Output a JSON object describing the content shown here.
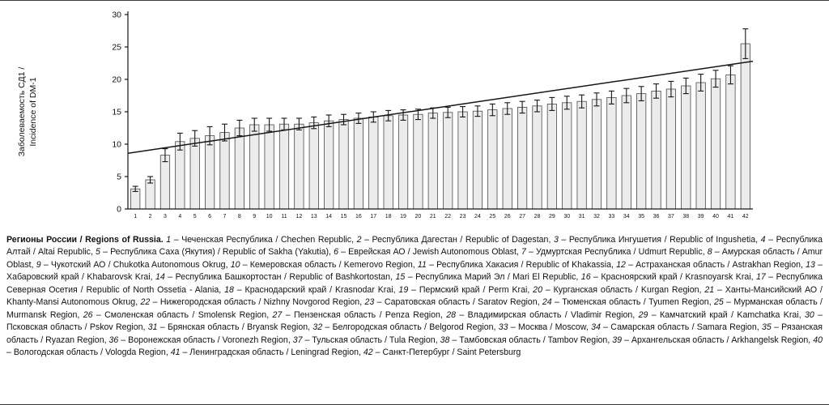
{
  "chart_data": {
    "type": "bar",
    "title": "",
    "xlabel": "",
    "ylabel_line1": "Заболеваемость СД1 /",
    "ylabel_line2": "Incidence of DM-1",
    "ylim": [
      0,
      30
    ],
    "yticks": [
      0,
      5,
      10,
      15,
      20,
      25,
      30
    ],
    "grid": false,
    "legend": false,
    "x": [
      1,
      2,
      3,
      4,
      5,
      6,
      7,
      8,
      9,
      10,
      11,
      12,
      13,
      14,
      15,
      16,
      17,
      18,
      19,
      20,
      21,
      22,
      23,
      24,
      25,
      26,
      27,
      28,
      29,
      30,
      31,
      32,
      33,
      34,
      35,
      36,
      37,
      38,
      39,
      40,
      41,
      42
    ],
    "values": [
      3.1,
      4.5,
      8.3,
      10.4,
      10.9,
      11.3,
      11.8,
      12.5,
      13,
      13,
      13.1,
      13.1,
      13.3,
      13.6,
      13.8,
      14,
      14.2,
      14.4,
      14.5,
      14.6,
      14.8,
      14.9,
      15,
      15.1,
      15.3,
      15.5,
      15.7,
      15.9,
      16.2,
      16.4,
      16.6,
      16.9,
      17.2,
      17.5,
      17.8,
      18.2,
      18.5,
      19,
      19.5,
      20.1,
      20.7,
      25.5
    ],
    "errors": [
      0.4,
      0.5,
      1.0,
      1.3,
      1.2,
      1.4,
      1.3,
      1.2,
      1.0,
      1.0,
      0.9,
      0.9,
      0.9,
      0.9,
      0.8,
      0.8,
      0.8,
      0.8,
      0.8,
      0.8,
      0.8,
      0.8,
      0.8,
      0.8,
      0.9,
      0.9,
      0.9,
      0.9,
      1.0,
      1.0,
      1.0,
      1.0,
      1.0,
      1.1,
      1.1,
      1.1,
      1.2,
      1.2,
      1.3,
      1.3,
      1.4,
      2.3
    ],
    "trendline": {
      "y_start": 8.6,
      "y_end": 22.8
    }
  },
  "caption": {
    "heading": "Регионы России / Regions of Russia.",
    "regions": [
      {
        "n": 1,
        "ru": "Чеченская Республика",
        "en": "Chechen Republic"
      },
      {
        "n": 2,
        "ru": "Республика Дагестан",
        "en": "Republic of Dagestan"
      },
      {
        "n": 3,
        "ru": "Республика Ингушетия",
        "en": "Republic of Ingushetia"
      },
      {
        "n": 4,
        "ru": "Республика Алтай",
        "en": "Altai Republic"
      },
      {
        "n": 5,
        "ru": "Республика Саха (Якутия)",
        "en": "Republic of Sakha (Yakutia)"
      },
      {
        "n": 6,
        "ru": "Еврейская АО",
        "en": "Jewish Autonomous Oblast"
      },
      {
        "n": 7,
        "ru": "Удмуртская Республика",
        "en": "Udmurt Republic"
      },
      {
        "n": 8,
        "ru": "Амурская область",
        "en": "Amur Oblast"
      },
      {
        "n": 9,
        "ru": "Чукотский АО",
        "en": "Chukotka Autonomous Okrug"
      },
      {
        "n": 10,
        "ru": "Кемеровская область",
        "en": "Kemerovo Region"
      },
      {
        "n": 11,
        "ru": "Республика Хакасия",
        "en": "Republic of Khakassia"
      },
      {
        "n": 12,
        "ru": "Астраханская область",
        "en": "Astrakhan Region"
      },
      {
        "n": 13,
        "ru": "Хабаровский край",
        "en": "Khabarovsk Krai"
      },
      {
        "n": 14,
        "ru": "Республика Башкортостан",
        "en": "Republic of Bashkortostan"
      },
      {
        "n": 15,
        "ru": "Республика Марий Эл",
        "en": "Mari El Republic"
      },
      {
        "n": 16,
        "ru": "Красноярский край",
        "en": "Krasnoyarsk Krai"
      },
      {
        "n": 17,
        "ru": "Республика Северная Осетия",
        "en": "Republic of North Ossetia - Alania"
      },
      {
        "n": 18,
        "ru": "Краснодарский край",
        "en": "Krasnodar Krai"
      },
      {
        "n": 19,
        "ru": "Пермский край",
        "en": "Perm Krai"
      },
      {
        "n": 20,
        "ru": "Курганская область",
        "en": "Kurgan Region"
      },
      {
        "n": 21,
        "ru": "Ханты-Мансийский АО",
        "en": "Khanty-Mansi Autonomous Okrug"
      },
      {
        "n": 22,
        "ru": "Нижегородская область",
        "en": "Nizhny Novgorod Region"
      },
      {
        "n": 23,
        "ru": "Саратовская область",
        "en": "Saratov Region"
      },
      {
        "n": 24,
        "ru": "Тюменская область",
        "en": "Tyumen Region"
      },
      {
        "n": 25,
        "ru": "Мурманская область",
        "en": "Murmansk Region"
      },
      {
        "n": 26,
        "ru": "Смоленская область",
        "en": "Smolensk Region"
      },
      {
        "n": 27,
        "ru": "Пензенская область",
        "en": "Penza Region"
      },
      {
        "n": 28,
        "ru": "Владимирская область",
        "en": "Vladimir Region"
      },
      {
        "n": 29,
        "ru": "Камчатский край",
        "en": "Kamchatka Krai"
      },
      {
        "n": 30,
        "ru": "Псковская область",
        "en": "Pskov Region"
      },
      {
        "n": 31,
        "ru": "Брянская область",
        "en": "Bryansk Region"
      },
      {
        "n": 32,
        "ru": "Белгородская область",
        "en": "Belgorod Region"
      },
      {
        "n": 33,
        "ru": "Москва",
        "en": "Moscow"
      },
      {
        "n": 34,
        "ru": "Самарская область",
        "en": "Samara Region"
      },
      {
        "n": 35,
        "ru": "Рязанская область",
        "en": "Ryazan Region"
      },
      {
        "n": 36,
        "ru": "Воронежская область",
        "en": "Voronezh Region"
      },
      {
        "n": 37,
        "ru": "Тульская область",
        "en": "Tula Region"
      },
      {
        "n": 38,
        "ru": "Тамбовская область",
        "en": "Tambov Region"
      },
      {
        "n": 39,
        "ru": "Архангельская область",
        "en": "Arkhangelsk Region"
      },
      {
        "n": 40,
        "ru": "Вологодская область",
        "en": "Vologda Region"
      },
      {
        "n": 41,
        "ru": "Ленинградская область",
        "en": "Leningrad Region"
      },
      {
        "n": 42,
        "ru": "Санкт-Петербург",
        "en": "Saint Petersburg"
      }
    ]
  }
}
